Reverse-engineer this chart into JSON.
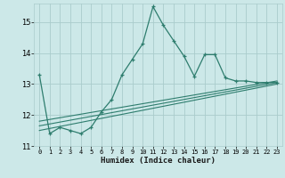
{
  "xlabel": "Humidex (Indice chaleur)",
  "ylabel": "",
  "bg_color": "#cce8e8",
  "grid_color": "#aacccc",
  "line_color": "#2e7d6e",
  "xlim": [
    -0.5,
    23.5
  ],
  "ylim": [
    11,
    15.6
  ],
  "xticks": [
    0,
    1,
    2,
    3,
    4,
    5,
    6,
    7,
    8,
    9,
    10,
    11,
    12,
    13,
    14,
    15,
    16,
    17,
    18,
    19,
    20,
    21,
    22,
    23
  ],
  "yticks": [
    11,
    12,
    13,
    14,
    15
  ],
  "series": [
    [
      0,
      13.3
    ],
    [
      1,
      11.4
    ],
    [
      2,
      11.6
    ],
    [
      3,
      11.5
    ],
    [
      4,
      11.4
    ],
    [
      5,
      11.6
    ],
    [
      6,
      12.1
    ],
    [
      7,
      12.5
    ],
    [
      8,
      13.3
    ],
    [
      9,
      13.8
    ],
    [
      10,
      14.3
    ],
    [
      11,
      15.5
    ],
    [
      12,
      14.9
    ],
    [
      13,
      14.4
    ],
    [
      14,
      13.9
    ],
    [
      15,
      13.25
    ],
    [
      16,
      13.95
    ],
    [
      17,
      13.95
    ],
    [
      18,
      13.2
    ],
    [
      19,
      13.1
    ],
    [
      20,
      13.1
    ],
    [
      21,
      13.05
    ],
    [
      22,
      13.05
    ],
    [
      23,
      13.05
    ]
  ],
  "linear1": [
    [
      0,
      11.5
    ],
    [
      23,
      13.0
    ]
  ],
  "linear2": [
    [
      0,
      11.65
    ],
    [
      23,
      13.05
    ]
  ],
  "linear3": [
    [
      0,
      11.8
    ],
    [
      23,
      13.1
    ]
  ]
}
